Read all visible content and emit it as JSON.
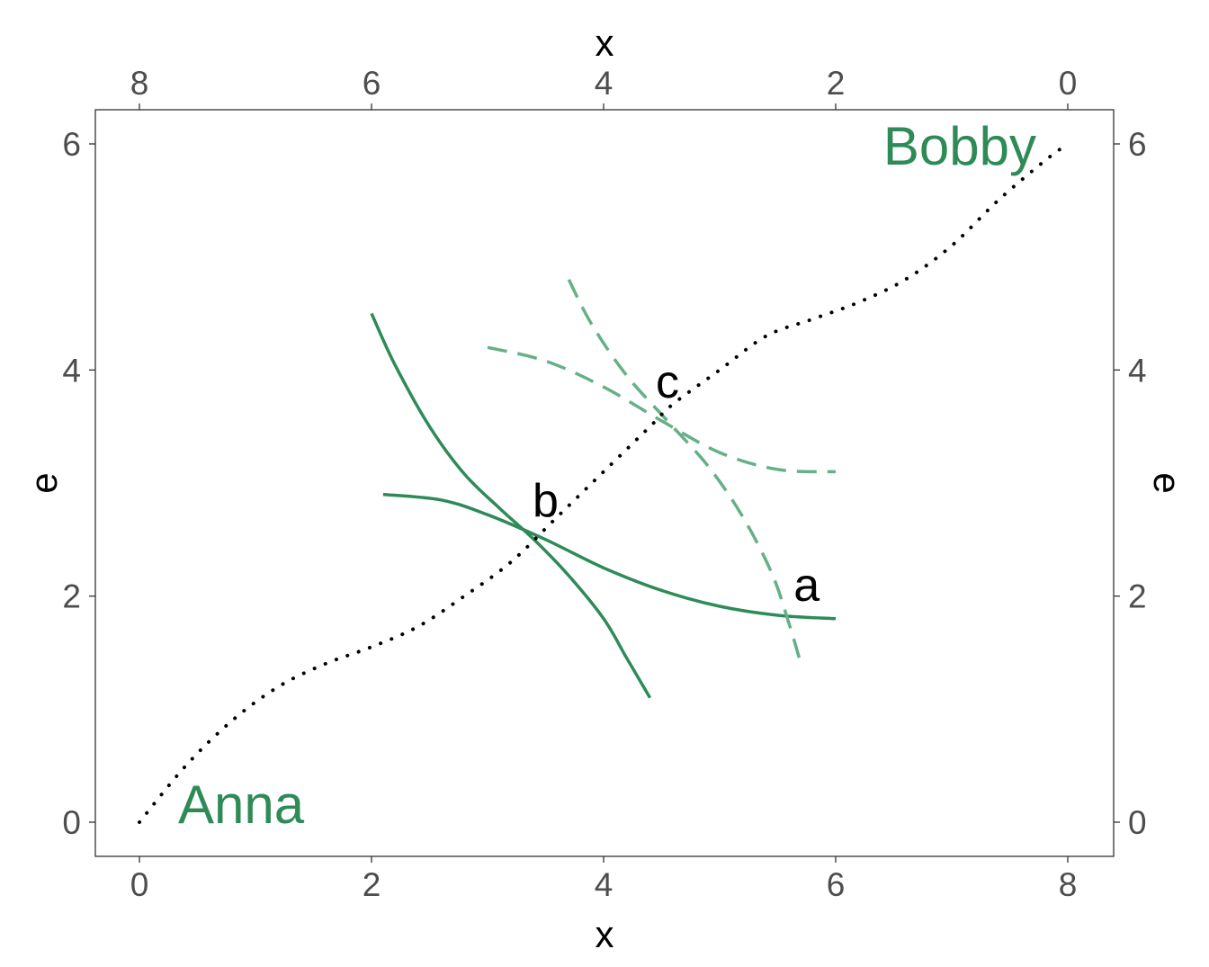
{
  "chart_data": {
    "type": "line",
    "title": "",
    "xlabel": "x",
    "ylabel": "e",
    "xlabel_top": "x",
    "ylabel_right": "e",
    "xlim": [
      0,
      8
    ],
    "ylim": [
      0,
      6
    ],
    "x_ticks": [
      "0",
      "2",
      "4",
      "6",
      "8"
    ],
    "y_ticks": [
      "0",
      "2",
      "4",
      "6"
    ],
    "x_ticks_top": [
      "8",
      "6",
      "4",
      "2",
      "0"
    ],
    "y_ticks_right": [
      "6",
      "4",
      "2",
      "0"
    ],
    "grid": false,
    "legend": "none",
    "colors": {
      "anna": "#2e8b57",
      "bobby": "#66b088",
      "contract_curve": "#000000"
    },
    "person_labels": {
      "anna": "Anna",
      "bobby": "Bobby"
    },
    "points": [
      {
        "label": "a",
        "x": 5.75,
        "y": 2.1
      },
      {
        "label": "b",
        "x": 3.5,
        "y": 2.85
      },
      {
        "label": "c",
        "x": 4.55,
        "y": 3.9
      }
    ],
    "series": [
      {
        "style": "solid",
        "color_key": "anna",
        "x": [
          2.0,
          2.2,
          2.5,
          2.8,
          3.1,
          3.4,
          3.7,
          4.0,
          4.2,
          4.4
        ],
        "y": [
          4.5,
          4.05,
          3.5,
          3.08,
          2.78,
          2.5,
          2.18,
          1.8,
          1.45,
          1.1
        ]
      },
      {
        "style": "solid",
        "color_key": "anna",
        "x": [
          2.1,
          2.6,
          3.0,
          3.5,
          4.0,
          4.5,
          5.0,
          5.5,
          6.0
        ],
        "y": [
          2.9,
          2.85,
          2.72,
          2.5,
          2.25,
          2.05,
          1.91,
          1.83,
          1.8
        ]
      },
      {
        "style": "dashed",
        "color_key": "bobby",
        "x": [
          3.7,
          3.9,
          4.2,
          4.55,
          4.9,
          5.2,
          5.45,
          5.6,
          5.7
        ],
        "y": [
          4.8,
          4.4,
          3.95,
          3.55,
          3.15,
          2.7,
          2.2,
          1.75,
          1.4
        ]
      },
      {
        "style": "dashed",
        "color_key": "bobby",
        "x": [
          3.0,
          3.5,
          4.0,
          4.5,
          5.0,
          5.5,
          6.0
        ],
        "y": [
          4.2,
          4.08,
          3.85,
          3.55,
          3.27,
          3.12,
          3.1
        ]
      },
      {
        "style": "dotted",
        "color_key": "contract_curve",
        "x": [
          0.0,
          0.4,
          0.8,
          1.2,
          1.6,
          2.0,
          2.4,
          2.8,
          3.2,
          3.6,
          4.0,
          4.4,
          4.6,
          5.0,
          5.4,
          5.8,
          6.2,
          6.6,
          7.0,
          7.4,
          7.8,
          8.0
        ],
        "y": [
          0.0,
          0.5,
          0.9,
          1.2,
          1.4,
          1.55,
          1.73,
          2.0,
          2.3,
          2.7,
          3.1,
          3.5,
          3.7,
          4.0,
          4.3,
          4.45,
          4.6,
          4.8,
          5.1,
          5.5,
          5.85,
          6.0
        ]
      }
    ]
  }
}
